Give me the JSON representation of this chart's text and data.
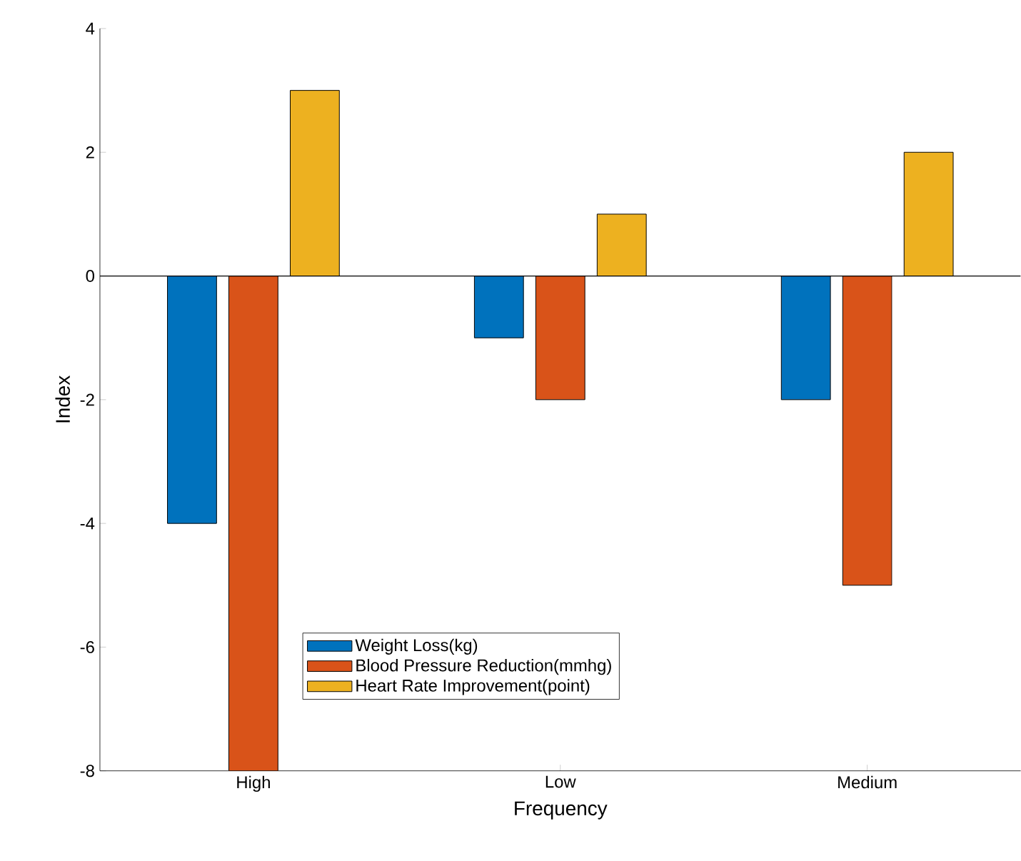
{
  "chart_data": {
    "type": "bar",
    "xlabel": "Frequency",
    "ylabel": "Index",
    "categories": [
      "High",
      "Low",
      "Medium"
    ],
    "series": [
      {
        "name": "Weight Loss(kg)",
        "color": "#0072bd",
        "values": [
          -4,
          -1,
          -2
        ]
      },
      {
        "name": "Blood Pressure Reduction(mmhg)",
        "color": "#d95319",
        "values": [
          -8,
          -2,
          -5
        ]
      },
      {
        "name": "Heart Rate Improvement(point)",
        "color": "#edb120",
        "values": [
          3,
          1,
          2
        ]
      }
    ],
    "ylim": [
      -8,
      4
    ],
    "yticks": [
      -8,
      -6,
      -4,
      -2,
      0,
      2,
      4
    ],
    "ref_lines": [
      {
        "axis": "y",
        "value": 0,
        "color": "#000000"
      }
    ],
    "legend": "bottom",
    "grid": false
  }
}
